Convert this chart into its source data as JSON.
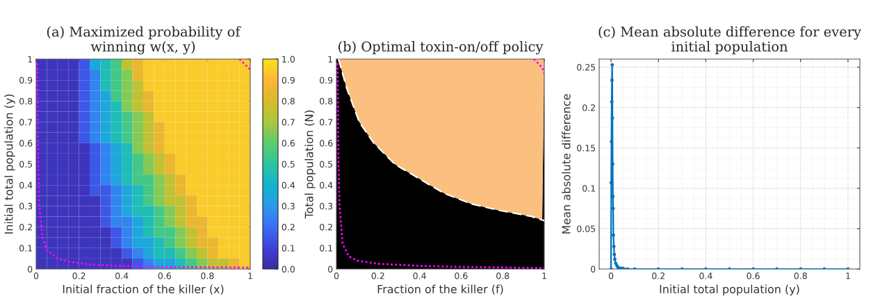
{
  "chart_data": [
    {
      "type": "heatmap",
      "title": "(a) Maximized probability of winning w(x, y)",
      "xlabel": "Initial fraction of the killer (x)",
      "ylabel": "Initial total population (y)",
      "x": [
        0.025,
        0.075,
        0.125,
        0.175,
        0.225,
        0.275,
        0.325,
        0.375,
        0.425,
        0.475,
        0.525,
        0.575,
        0.625,
        0.675,
        0.725,
        0.775,
        0.825,
        0.875,
        0.925,
        0.975
      ],
      "y": [
        0.975,
        0.925,
        0.875,
        0.825,
        0.775,
        0.725,
        0.675,
        0.625,
        0.575,
        0.525,
        0.475,
        0.425,
        0.375,
        0.325,
        0.275,
        0.225,
        0.175,
        0.125,
        0.075,
        0.025
      ],
      "cells": [
        [
          0.05,
          0.05,
          0.05,
          0.05,
          0.15,
          0.35,
          0.45,
          0.55,
          0.75,
          0.85,
          0.95,
          0.95,
          0.95,
          0.95,
          0.95,
          0.95,
          0.95,
          0.95,
          0.95,
          0.95
        ],
        [
          0.05,
          0.05,
          0.05,
          0.05,
          0.15,
          0.25,
          0.45,
          0.55,
          0.65,
          0.85,
          0.95,
          0.95,
          0.95,
          0.95,
          0.95,
          0.95,
          0.95,
          0.95,
          0.95,
          0.95
        ],
        [
          0.05,
          0.05,
          0.05,
          0.05,
          0.15,
          0.25,
          0.45,
          0.55,
          0.65,
          0.75,
          0.95,
          0.95,
          0.95,
          0.95,
          0.95,
          0.95,
          0.95,
          0.95,
          0.95,
          0.95
        ],
        [
          0.05,
          0.05,
          0.05,
          0.05,
          0.15,
          0.25,
          0.35,
          0.55,
          0.65,
          0.75,
          0.85,
          0.95,
          0.95,
          0.95,
          0.95,
          0.95,
          0.95,
          0.95,
          0.95,
          0.95
        ],
        [
          0.05,
          0.05,
          0.05,
          0.05,
          0.15,
          0.25,
          0.35,
          0.45,
          0.65,
          0.75,
          0.85,
          0.95,
          0.95,
          0.95,
          0.95,
          0.95,
          0.95,
          0.95,
          0.95,
          0.95
        ],
        [
          0.05,
          0.05,
          0.05,
          0.05,
          0.15,
          0.25,
          0.35,
          0.45,
          0.55,
          0.65,
          0.75,
          0.95,
          0.95,
          0.95,
          0.95,
          0.95,
          0.95,
          0.95,
          0.95,
          0.95
        ],
        [
          0.05,
          0.05,
          0.05,
          0.05,
          0.15,
          0.25,
          0.35,
          0.45,
          0.55,
          0.65,
          0.75,
          0.85,
          0.95,
          0.95,
          0.95,
          0.95,
          0.95,
          0.95,
          0.95,
          0.95
        ],
        [
          0.05,
          0.05,
          0.05,
          0.05,
          0.15,
          0.25,
          0.35,
          0.45,
          0.55,
          0.65,
          0.75,
          0.85,
          0.95,
          0.95,
          0.95,
          0.95,
          0.95,
          0.95,
          0.95,
          0.95
        ],
        [
          0.05,
          0.05,
          0.05,
          0.05,
          0.05,
          0.15,
          0.25,
          0.35,
          0.45,
          0.65,
          0.75,
          0.85,
          0.95,
          0.95,
          0.95,
          0.95,
          0.95,
          0.95,
          0.95,
          0.95
        ],
        [
          0.05,
          0.05,
          0.05,
          0.05,
          0.05,
          0.15,
          0.25,
          0.35,
          0.45,
          0.55,
          0.65,
          0.75,
          0.85,
          0.95,
          0.95,
          0.95,
          0.95,
          0.95,
          0.95,
          0.95
        ],
        [
          0.05,
          0.05,
          0.05,
          0.05,
          0.05,
          0.15,
          0.25,
          0.35,
          0.45,
          0.55,
          0.65,
          0.75,
          0.85,
          0.95,
          0.95,
          0.95,
          0.95,
          0.95,
          0.95,
          0.95
        ],
        [
          0.05,
          0.05,
          0.05,
          0.05,
          0.05,
          0.15,
          0.25,
          0.35,
          0.45,
          0.55,
          0.55,
          0.65,
          0.75,
          0.85,
          0.95,
          0.95,
          0.95,
          0.95,
          0.95,
          0.95
        ],
        [
          0.05,
          0.05,
          0.05,
          0.05,
          0.05,
          0.15,
          0.15,
          0.25,
          0.35,
          0.45,
          0.55,
          0.65,
          0.75,
          0.85,
          0.95,
          0.95,
          0.95,
          0.95,
          0.95,
          0.95
        ],
        [
          0.05,
          0.05,
          0.05,
          0.05,
          0.05,
          0.05,
          0.15,
          0.25,
          0.35,
          0.45,
          0.55,
          0.65,
          0.75,
          0.75,
          0.85,
          0.95,
          0.95,
          0.95,
          0.95,
          0.95
        ],
        [
          0.05,
          0.05,
          0.05,
          0.05,
          0.05,
          0.05,
          0.15,
          0.25,
          0.35,
          0.45,
          0.45,
          0.55,
          0.65,
          0.75,
          0.85,
          0.95,
          0.95,
          0.95,
          0.95,
          0.95
        ],
        [
          0.05,
          0.05,
          0.05,
          0.05,
          0.05,
          0.05,
          0.15,
          0.25,
          0.25,
          0.35,
          0.45,
          0.55,
          0.65,
          0.75,
          0.85,
          0.85,
          0.95,
          0.95,
          0.95,
          0.95
        ],
        [
          0.05,
          0.05,
          0.05,
          0.05,
          0.05,
          0.05,
          0.05,
          0.15,
          0.25,
          0.35,
          0.45,
          0.55,
          0.55,
          0.65,
          0.75,
          0.85,
          0.95,
          0.95,
          0.95,
          0.95
        ],
        [
          0.05,
          0.05,
          0.05,
          0.05,
          0.05,
          0.05,
          0.05,
          0.15,
          0.25,
          0.35,
          0.35,
          0.45,
          0.55,
          0.65,
          0.75,
          0.85,
          0.85,
          0.95,
          0.95,
          0.95
        ],
        [
          0.05,
          0.05,
          0.05,
          0.05,
          0.05,
          0.05,
          0.05,
          0.05,
          0.15,
          0.25,
          0.35,
          0.45,
          0.45,
          0.55,
          0.65,
          0.75,
          0.85,
          0.95,
          0.95,
          0.95
        ],
        [
          0.05,
          0.05,
          0.05,
          0.05,
          0.05,
          0.05,
          0.05,
          0.05,
          0.05,
          0.15,
          0.25,
          0.35,
          0.35,
          0.45,
          0.55,
          0.65,
          0.75,
          0.75,
          0.85,
          0.95
        ]
      ],
      "xlim": [
        0,
        1
      ],
      "ylim": [
        0,
        1
      ],
      "xticks": [
        0,
        0.2,
        0.4,
        0.6,
        0.8,
        1
      ],
      "yticks": [
        0,
        0.1,
        0.2,
        0.3,
        0.4,
        0.5,
        0.6,
        0.7,
        0.8,
        0.9,
        1
      ],
      "clim": [
        0,
        1
      ],
      "cticks": [
        {
          "value": 0,
          "label": "0.0"
        },
        {
          "value": 0.1,
          "label": "0.1"
        },
        {
          "value": 0.2,
          "label": "0.2"
        },
        {
          "value": 0.3,
          "label": "0.3"
        },
        {
          "value": 0.4,
          "label": "0.4"
        },
        {
          "value": 0.5,
          "label": "0.5"
        },
        {
          "value": 0.6,
          "label": "0.6"
        },
        {
          "value": 0.7,
          "label": "0.7"
        },
        {
          "value": 0.8,
          "label": "0.8"
        },
        {
          "value": 0.9,
          "label": "0.9"
        },
        {
          "value": 1,
          "label": "1.0"
        }
      ],
      "series": [
        {
          "type": "line",
          "color": "#ff00ff",
          "line_style": "dotted",
          "x": [
            0.005,
            0.01,
            0.015,
            0.03,
            0.05,
            0.1,
            0.15,
            0.25,
            0.4,
            0.6,
            1
          ],
          "values": [
            0.98,
            0.5,
            0.3,
            0.15,
            0.09,
            0.05,
            0.035,
            0.022,
            0.014,
            0.01,
            0.007
          ]
        },
        {
          "type": "line",
          "color": "#ff00ff",
          "line_style": "dotted",
          "x": [
            0.95,
            1
          ],
          "values": [
            1,
            0.95
          ]
        }
      ]
    },
    {
      "type": "area",
      "title": "(b) Optimal toxin-on/off policy",
      "xlabel": "Fraction of the killer (f)",
      "ylabel": "Total population (N)",
      "stacked": true,
      "xlim": [
        0,
        1
      ],
      "ylim": [
        0,
        1
      ],
      "xticks": [
        0,
        0.2,
        0.4,
        0.6,
        0.8,
        1
      ],
      "yticks": [
        0,
        0.1,
        0.2,
        0.3,
        0.4,
        0.5,
        0.6,
        0.7,
        0.8,
        0.9,
        1
      ],
      "series": [
        {
          "type": "area",
          "color": "#000000",
          "x": [
            0,
            0.01,
            0.05,
            0.11,
            0.18,
            0.28,
            0.45,
            0.52,
            0.65,
            0.78,
            0.94,
            0.99,
            1
          ],
          "values": [
            1,
            1,
            0.86,
            0.7,
            0.6,
            0.5,
            0.4,
            0.36,
            0.31,
            0.28,
            0.25,
            0.235,
            1
          ]
        },
        {
          "type": "area",
          "color": "#fbc07f",
          "x": [
            0,
            0.01,
            0.05,
            0.11,
            0.18,
            0.28,
            0.45,
            0.52,
            0.65,
            0.78,
            0.94,
            0.99,
            1
          ],
          "values": [
            0,
            0,
            0.14,
            0.3,
            0.4,
            0.5,
            0.6,
            0.64,
            0.69,
            0.72,
            0.75,
            0.765,
            0
          ]
        },
        {
          "type": "line",
          "color": "#ffffff",
          "line_style": "dashed",
          "x": [
            0.01,
            0.05,
            0.11,
            0.18,
            0.28,
            0.45,
            0.52,
            0.65,
            0.78,
            0.94,
            1
          ],
          "values": [
            1,
            0.86,
            0.7,
            0.6,
            0.5,
            0.4,
            0.36,
            0.31,
            0.28,
            0.25,
            0.23
          ]
        },
        {
          "type": "line",
          "color": "#ff00ff",
          "line_style": "dotted",
          "x": [
            0.005,
            0.01,
            0.015,
            0.03,
            0.06,
            0.1,
            0.2,
            0.4,
            0.6,
            1
          ],
          "values": [
            0.98,
            0.5,
            0.3,
            0.12,
            0.06,
            0.04,
            0.025,
            0.015,
            0.01,
            0.005
          ]
        },
        {
          "type": "line",
          "color": "#ff00ff",
          "line_style": "dotted",
          "x": [
            0.95,
            0.99,
            1
          ],
          "values": [
            1,
            0.96,
            0.93
          ]
        }
      ]
    },
    {
      "type": "line",
      "title": "(c) Mean absolute difference for every initial population",
      "xlabel": "Initial total population (y)",
      "ylabel": "Mean absolute difference",
      "xlim": [
        -0.05,
        1.05
      ],
      "ylim": [
        0,
        0.26
      ],
      "xticks": [
        0,
        0.2,
        0.4,
        0.6,
        0.8,
        1
      ],
      "yticks": [
        0,
        0.05,
        0.1,
        0.15,
        0.2,
        0.25
      ],
      "grid": true,
      "marker": "circle",
      "series": [
        {
          "color": "#0072bd",
          "x": [
            0,
            0.001,
            0.002,
            0.003,
            0.004,
            0.005,
            0.006,
            0.007,
            0.008,
            0.009,
            0.01,
            0.012,
            0.014,
            0.016,
            0.02,
            0.025,
            0.03,
            0.04,
            0.05,
            0.07,
            0.1,
            0.2,
            0.3,
            0.4,
            0.5,
            0.6,
            0.7,
            0.8,
            0.9,
            1
          ],
          "values": [
            0,
            0.107,
            0.158,
            0.207,
            0.234,
            0.253,
            0.187,
            0.13,
            0.09,
            0.075,
            0.042,
            0.028,
            0.018,
            0.012,
            0.007,
            0.004,
            0.002,
            0.001,
            0.001,
            0,
            0,
            0,
            0,
            0,
            0,
            0,
            0,
            0,
            0,
            0
          ]
        }
      ]
    }
  ]
}
